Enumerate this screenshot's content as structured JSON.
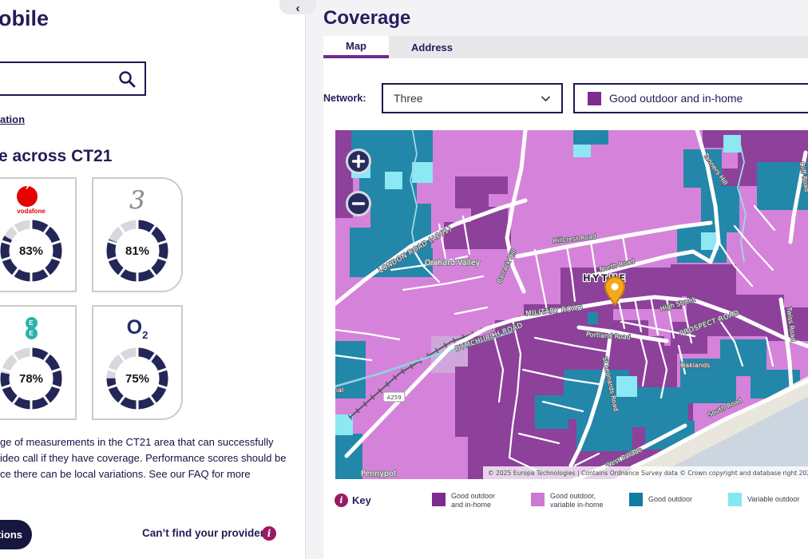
{
  "left_panel": {
    "title": "obile",
    "search": {
      "value": ""
    },
    "location_link": "ation",
    "section_heading": "e across CT21",
    "providers": [
      {
        "name": "vodafone",
        "logo_mark": "’",
        "logo_word": "vodafone",
        "percent": 83,
        "percent_label": "83%"
      },
      {
        "name": "three",
        "logo_glyph": "3",
        "percent": 81,
        "percent_label": "81%"
      },
      {
        "name": "ee",
        "logo_letter_top": "E",
        "logo_letter_bottom": "E",
        "percent": 78,
        "percent_label": "78%"
      },
      {
        "name": "o2",
        "logo_glyph": "O",
        "logo_sub": "2",
        "percent": 75,
        "percent_label": "75%"
      }
    ],
    "description_lines": [
      "ge of measurements in the CT21 area that can successfully",
      "ideo call if they have coverage. Performance scores should be",
      "ce there can be local variations. See our FAQ for more"
    ],
    "predictions_button": "tions",
    "provider_question": "Can’t find your provider?"
  },
  "coverage": {
    "title": "Coverage",
    "tabs": [
      {
        "label": "Map",
        "active": true
      },
      {
        "label": "Address",
        "active": false
      }
    ],
    "network_label": "Network:",
    "network_value": "Three",
    "coverage_filter": "Good outdoor and in-home",
    "zoom_in": "+",
    "zoom_out": "−",
    "key": {
      "label": "Key",
      "items": [
        {
          "color": "#7d2b8f",
          "line1": "Good outdoor",
          "line2": "and in-home"
        },
        {
          "color": "#cb79d3",
          "line1": "Good outdoor,",
          "line2": "variable in-home"
        },
        {
          "color": "#0f7ca1",
          "line1": "Good outdoor",
          "line2": ""
        },
        {
          "color": "#82e9f0",
          "line1": "Variable outdoor",
          "line2": ""
        }
      ]
    },
    "map": {
      "labels": {
        "london_road": "LONDON ROAD (A261)",
        "barrack_hill": "Barrack Hill",
        "hillcrest_road": "Hillcrest Road",
        "north_road": "North Road",
        "orchard_valley": "Orchard Valley",
        "hythe": "HYTHE",
        "military_road": "MILITARY ROAD",
        "high_street": "High Street",
        "prospect_road": "PROSPECT ROAD",
        "dymchurch_road": "DYMCHURCH ROAD",
        "portland_road": "Portland Road",
        "st_leonards_road": "St Leonards Road",
        "twiss_road": "Twiss Road",
        "tanners_hill": "Tanners Hill",
        "cliff_road": "Cliff Road",
        "south_road": "South Road",
        "west_parade": "West Parade",
        "pennypot": "Pennypot",
        "oaklands": "Oaklands",
        "canal_fragment": "nal",
        "a259_shield": "A259"
      },
      "attribution": "© 2025 Europa Technologies | Contains Ordnance Survey data © Crown copyright and database right 2025 |"
    }
  },
  "colors": {
    "navy_text": "#221d57",
    "tab_underline_purple": "#6f2b90",
    "ring_navy": "#232757",
    "ring_gray": "#d8d8dc",
    "magenta_info": "#9c1a62",
    "vodafone_red": "#e60000",
    "ee_teal": "#2bb3a8",
    "o2_navy": "#232c65",
    "map_good_inhome": "#8d419b",
    "map_good_variable": "#d583da",
    "map_good_outdoor": "#2387a9",
    "map_variable_outdoor": "#8ce8f2",
    "map_sea": "#ccd6e1",
    "pin_orange": "#f5a81c"
  }
}
